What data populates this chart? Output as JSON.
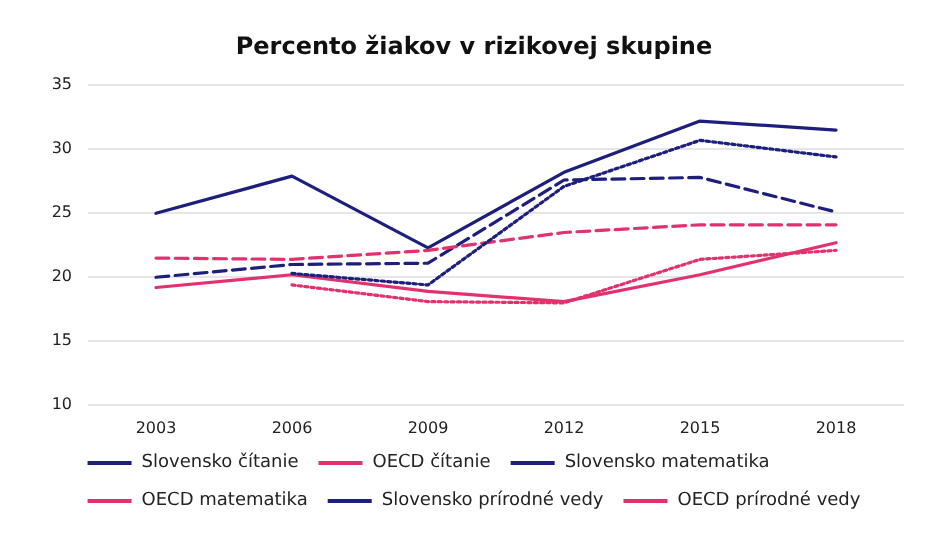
{
  "chart_data": {
    "type": "line",
    "title": "Percento žiakov v rizikovej skupine",
    "categories": [
      "2003",
      "2006",
      "2009",
      "2012",
      "2015",
      "2018"
    ],
    "series": [
      {
        "name": "Slovensko čítanie",
        "color": "#1c1f7c",
        "line_style": "solid",
        "values": [
          24.9,
          27.8,
          22.2,
          28.1,
          32.1,
          31.4
        ]
      },
      {
        "name": "OECD čítanie",
        "color": "#e2326e",
        "line_style": "solid",
        "values": [
          19.1,
          20.1,
          18.8,
          18.0,
          20.1,
          22.6
        ]
      },
      {
        "name": "Slovensko matematika",
        "color": "#1c1f7c",
        "line_style": "dashed",
        "values": [
          19.9,
          20.9,
          21.0,
          27.5,
          27.7,
          25.0
        ]
      },
      {
        "name": "OECD matematika",
        "color": "#e2326e",
        "line_style": "dashed",
        "values": [
          21.4,
          21.3,
          22.0,
          23.4,
          24.0,
          24.0
        ]
      },
      {
        "name": "Slovensko prírodné vedy",
        "color": "#1c1f7c",
        "line_style": "dotted",
        "values": [
          null,
          20.2,
          19.3,
          27.0,
          30.6,
          29.3
        ]
      },
      {
        "name": "OECD prírodné vedy",
        "color": "#e2326e",
        "line_style": "dotted",
        "values": [
          null,
          19.3,
          18.0,
          17.9,
          21.3,
          22.0
        ]
      }
    ],
    "ylim": [
      10,
      35
    ],
    "yticks": [
      10,
      15,
      20,
      25,
      30,
      35
    ],
    "grid": "y",
    "legend": "bottom",
    "marker": "none"
  }
}
